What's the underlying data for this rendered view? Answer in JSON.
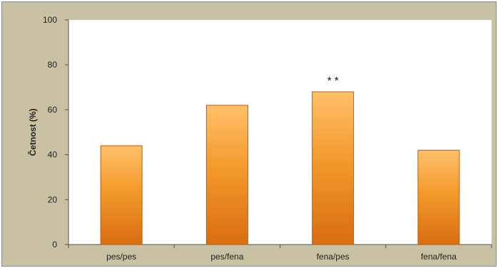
{
  "chart_data": {
    "type": "bar",
    "categories": [
      "pes/pes",
      "pes/fena",
      "fena/pes",
      "fena/fena"
    ],
    "values": [
      44,
      62,
      68,
      42
    ],
    "title": "",
    "xlabel": "",
    "ylabel": "Četnost (%)",
    "ylim": [
      0,
      100
    ],
    "yticks": [
      "0",
      "20",
      "40",
      "60",
      "80",
      "100"
    ],
    "grid": false,
    "legend": "none",
    "annotations": [
      {
        "category": "fena/pes",
        "text": "* *"
      }
    ],
    "colors": {
      "bar_light": "#ffc06a",
      "bar_mid": "#f39a2c",
      "bar_dark": "#d96d12",
      "bar_edge": "#b8600f",
      "plot_bg": "#ffffff",
      "outer_bg": "#c8c1a4",
      "axis": "#555555"
    }
  }
}
